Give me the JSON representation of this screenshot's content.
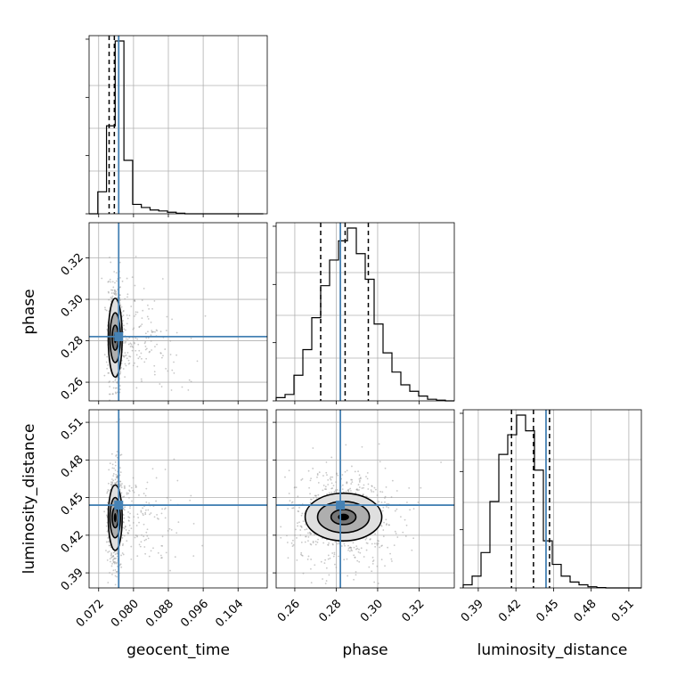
{
  "chart_data": {
    "type": "corner",
    "grid": true,
    "parameters": [
      "geocent_time",
      "phase",
      "luminosity_distance"
    ],
    "axis_labels": {
      "geocent_time": "geocent_time",
      "phase": "phase",
      "luminosity_distance": "luminosity_distance"
    },
    "ranges": {
      "geocent_time": [
        0.0698,
        0.1107
      ],
      "phase": [
        0.251,
        0.337
      ],
      "luminosity_distance": [
        0.378,
        0.52
      ]
    },
    "ticks": {
      "geocent_time": [
        "0.072",
        "0.080",
        "0.088",
        "0.096",
        "0.104"
      ],
      "phase": [
        "0.26",
        "0.28",
        "0.30",
        "0.32"
      ],
      "luminosity_distance": [
        "0.39",
        "0.42",
        "0.45",
        "0.48",
        "0.51"
      ]
    },
    "truths": {
      "geocent_time": 0.0766,
      "phase": 0.282,
      "luminosity_distance": 0.444
    },
    "truth_color": "#4682b4",
    "histograms": {
      "geocent_time": {
        "edges": [
          0.0698,
          0.0718,
          0.0738,
          0.0758,
          0.0778,
          0.0798,
          0.0818,
          0.0838,
          0.0858,
          0.0878,
          0.0898,
          0.0918,
          0.0938,
          0.0958,
          0.0978,
          0.0998,
          0.1018,
          0.1038,
          0.1058,
          0.1078,
          0.1098
        ],
        "counts": [
          0,
          0.7,
          2.8,
          5.5,
          1.7,
          0.3,
          0.2,
          0.12,
          0.09,
          0.05,
          0.02,
          0,
          0,
          0,
          0,
          0,
          0,
          0,
          0,
          0
        ],
        "quantiles": [
          0.0744,
          0.0756,
          0.0766
        ]
      },
      "phase": {
        "edges": [
          0.251,
          0.2553,
          0.2596,
          0.2639,
          0.2682,
          0.2725,
          0.2768,
          0.2811,
          0.2854,
          0.2897,
          0.294,
          0.2983,
          0.3026,
          0.3069,
          0.3112,
          0.3155,
          0.3198,
          0.3241,
          0.3284,
          0.3327,
          0.337
        ],
        "counts": [
          0.1,
          0.2,
          0.8,
          1.6,
          2.6,
          3.6,
          4.4,
          5.0,
          5.4,
          4.6,
          3.8,
          2.4,
          1.5,
          0.9,
          0.5,
          0.3,
          0.15,
          0.05,
          0.02,
          0
        ],
        "quantiles": [
          0.2725,
          0.2843,
          0.2955
        ]
      },
      "luminosity_distance": {
        "edges": [
          0.378,
          0.3851,
          0.3922,
          0.3993,
          0.4064,
          0.4135,
          0.4206,
          0.4277,
          0.4348,
          0.4419,
          0.449,
          0.4561,
          0.4632,
          0.4703,
          0.4774,
          0.4845,
          0.4916,
          0.4987,
          0.5058,
          0.5129,
          0.52
        ],
        "counts": [
          0.08,
          0.3,
          0.9,
          2.2,
          3.4,
          3.9,
          4.4,
          4.0,
          3.0,
          1.2,
          0.6,
          0.3,
          0.15,
          0.08,
          0.03,
          0.01,
          0,
          0,
          0,
          0
        ],
        "quantiles": [
          0.4165,
          0.434,
          0.4468
        ]
      }
    },
    "contours_2d": [
      {
        "x": "geocent_time",
        "y": "phase",
        "center": [
          0.0758,
          0.2815
        ],
        "scatter_sigma": [
          0.003,
          0.013
        ],
        "levels": [
          {
            "rx": 0.0007,
            "ry": 0.006
          },
          {
            "rx": 0.0012,
            "ry": 0.012
          },
          {
            "rx": 0.0016,
            "ry": 0.019
          }
        ]
      },
      {
        "x": "geocent_time",
        "y": "luminosity_distance",
        "center": [
          0.0758,
          0.434
        ],
        "scatter_sigma": [
          0.003,
          0.02
        ],
        "levels": [
          {
            "rx": 0.0007,
            "ry": 0.008
          },
          {
            "rx": 0.0012,
            "ry": 0.016
          },
          {
            "rx": 0.0016,
            "ry": 0.026
          }
        ]
      },
      {
        "x": "phase",
        "y": "luminosity_distance",
        "center": [
          0.2835,
          0.4345
        ],
        "scatter_sigma": [
          0.013,
          0.02
        ],
        "levels": [
          {
            "rx": 0.006,
            "ry": 0.006
          },
          {
            "rx": 0.0125,
            "ry": 0.0125
          },
          {
            "rx": 0.0185,
            "ry": 0.019
          }
        ]
      }
    ]
  }
}
